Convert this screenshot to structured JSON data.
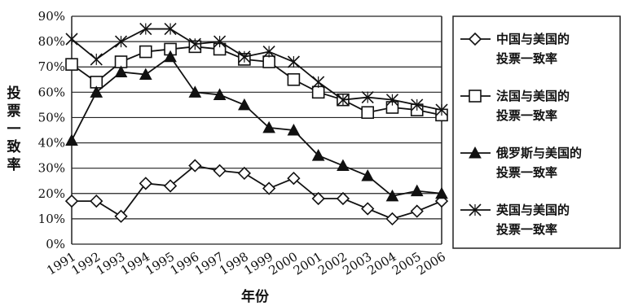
{
  "chart_data": {
    "type": "line",
    "x": [
      "1991",
      "1992",
      "1993",
      "1994",
      "1995",
      "1996",
      "1997",
      "1998",
      "1999",
      "2000",
      "2001",
      "2002",
      "2003",
      "2004",
      "2005",
      "2006"
    ],
    "xlabel": "年份",
    "ylabel": "投票一致率",
    "ylim": [
      0,
      90
    ],
    "yticks": [
      "0%",
      "10%",
      "20%",
      "30%",
      "40%",
      "50%",
      "60%",
      "70%",
      "80%",
      "90%"
    ],
    "grid": "horizontal",
    "legend_position": "right",
    "series": [
      {
        "name": "中国与美国的投票一致率",
        "marker": "diamond",
        "values": [
          17,
          17,
          11,
          24,
          23,
          31,
          29,
          28,
          22,
          26,
          18,
          18,
          14,
          10,
          13,
          17
        ]
      },
      {
        "name": "法国与美国的投票一致率",
        "marker": "square",
        "values": [
          71,
          64,
          72,
          76,
          77,
          78,
          77,
          73,
          72,
          65,
          60,
          57,
          52,
          54,
          53,
          51
        ]
      },
      {
        "name": "俄罗斯与美国的投票一致率",
        "marker": "triangle",
        "values": [
          41,
          60,
          68,
          67,
          74,
          60,
          59,
          55,
          46,
          45,
          35,
          31,
          27,
          19,
          21,
          20
        ]
      },
      {
        "name": "英国与美国的投票一致率",
        "marker": "x",
        "values": [
          81,
          73,
          80,
          85,
          85,
          79,
          80,
          74,
          76,
          72,
          64,
          57,
          58,
          57,
          55,
          53
        ]
      }
    ]
  }
}
